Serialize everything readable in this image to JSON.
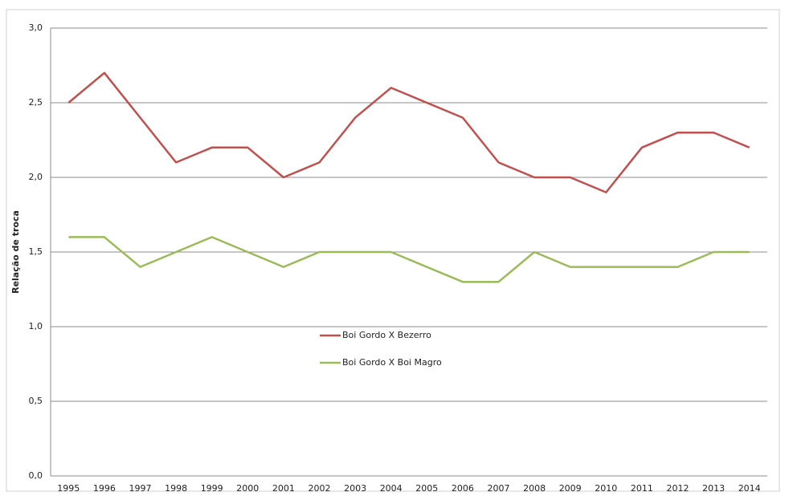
{
  "chart_data": {
    "type": "line",
    "y_label": "Relação de troca",
    "categories": [
      "1995",
      "1996",
      "1997",
      "1998",
      "1999",
      "2000",
      "2001",
      "2002",
      "2003",
      "2004",
      "2005",
      "2006",
      "2007",
      "2008",
      "2009",
      "2010",
      "2011",
      "2012",
      "2013",
      "2014"
    ],
    "series": [
      {
        "name": "Boi Gordo X Bezerro",
        "color": "#c0504d",
        "values": [
          2.5,
          2.7,
          2.4,
          2.1,
          2.2,
          2.2,
          2.0,
          2.1,
          2.4,
          2.6,
          2.5,
          2.4,
          2.1,
          2.0,
          2.0,
          1.9,
          2.2,
          2.3,
          2.3,
          2.2
        ]
      },
      {
        "name": "Boi Gordo X Boi Magro",
        "color": "#9bbb59",
        "values": [
          1.6,
          1.6,
          1.4,
          1.5,
          1.6,
          1.5,
          1.4,
          1.5,
          1.5,
          1.5,
          1.4,
          1.3,
          1.3,
          1.5,
          1.4,
          1.4,
          1.4,
          1.4,
          1.5,
          1.5
        ]
      }
    ],
    "ylim": [
      0,
      3
    ],
    "yticks": [
      {
        "value": 0,
        "label": "0,0"
      },
      {
        "value": 0.5,
        "label": "0,5"
      },
      {
        "value": 1,
        "label": "1,0"
      },
      {
        "value": 1.5,
        "label": "1,5"
      },
      {
        "value": 2,
        "label": "2,0"
      },
      {
        "value": 2.5,
        "label": "2,5"
      },
      {
        "value": 3,
        "label": "3,0"
      }
    ],
    "grid": true,
    "legend": "center"
  }
}
